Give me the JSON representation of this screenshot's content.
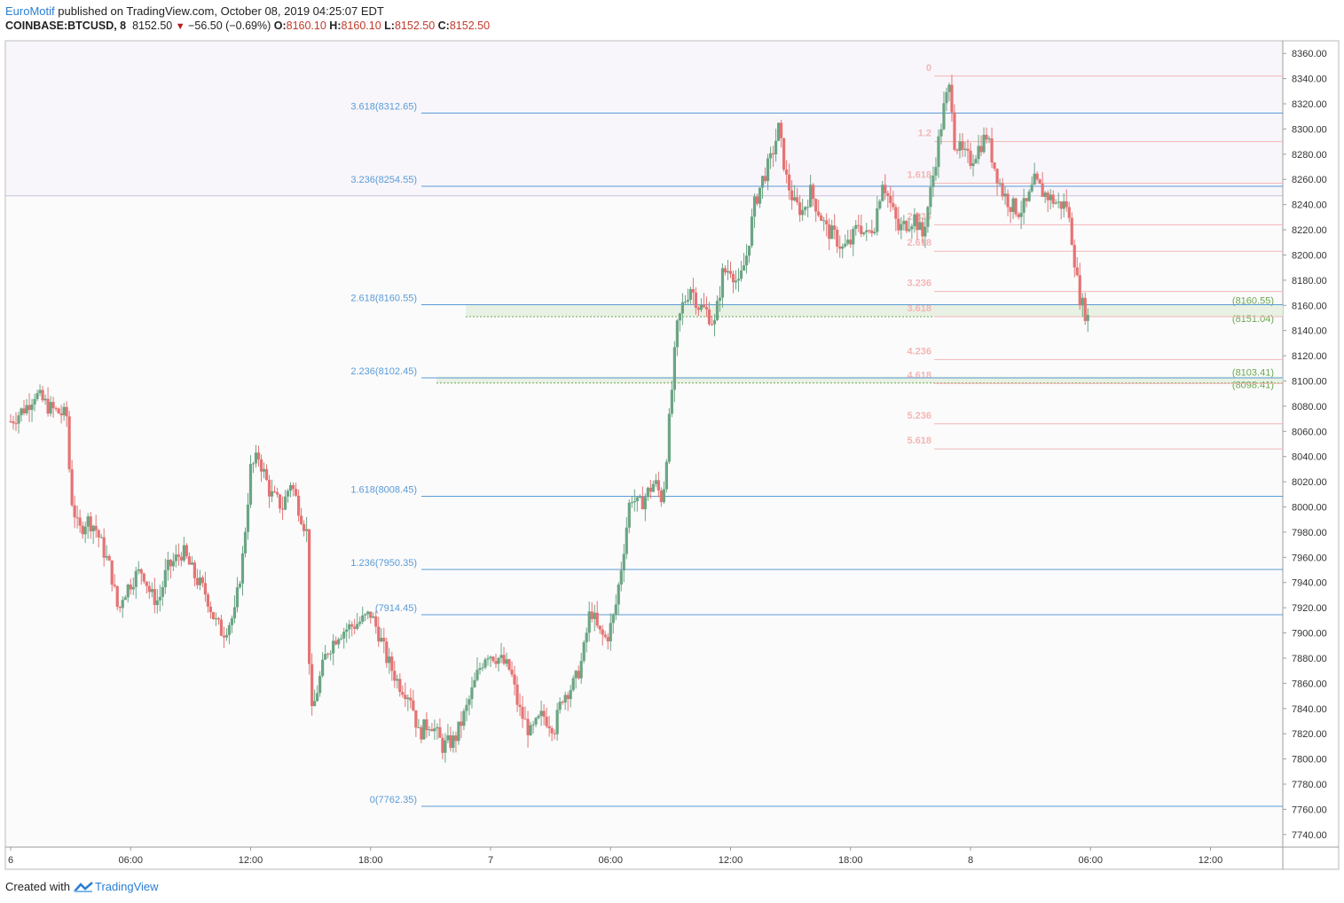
{
  "header": {
    "author": "EuroMotif",
    "published_text": "published on TradingView.com, October 08, 2019 04:25:07 EDT",
    "symbol": "COINBASE:BTCUSD, 8",
    "last_price": "8152.50",
    "change": "−56.50 (−0.69%)",
    "o_label": "O:",
    "o_value": "8160.10",
    "h_label": "H:",
    "h_value": "8160.10",
    "l_label": "L:",
    "l_value": "8152.50",
    "c_label": "C:",
    "c_value": "8152.50"
  },
  "footer": {
    "created_with": "Created with",
    "brand": "TradingView"
  },
  "colors": {
    "up": "#6ba583",
    "down": "#e57373",
    "fib_main": "#5b9bd5",
    "fib_secondary": "#f4b6b6",
    "zone_green": "#6aa84f",
    "axis_text": "#333333"
  },
  "chart_data": {
    "type": "candlestick",
    "symbol": "COINBASE:BTCUSD",
    "timeframe": "8",
    "ylim": [
      7730,
      8370
    ],
    "y_ticks": [
      "7740.00",
      "7760.00",
      "7780.00",
      "7800.00",
      "7820.00",
      "7840.00",
      "7860.00",
      "7880.00",
      "7900.00",
      "7920.00",
      "7940.00",
      "7960.00",
      "7980.00",
      "8000.00",
      "8020.00",
      "8040.00",
      "8060.00",
      "8080.00",
      "8100.00",
      "8120.00",
      "8140.00",
      "8160.00",
      "8180.00",
      "8200.00",
      "8220.00",
      "8240.00",
      "8260.00",
      "8280.00",
      "8300.00",
      "8320.00",
      "8340.00",
      "8360.00"
    ],
    "x_ticks": [
      {
        "t": 0,
        "label": "6"
      },
      {
        "t": 6,
        "label": "06:00"
      },
      {
        "t": 12,
        "label": "12:00"
      },
      {
        "t": 18,
        "label": "18:00"
      },
      {
        "t": 24,
        "label": "7"
      },
      {
        "t": 30,
        "label": "06:00"
      },
      {
        "t": 36,
        "label": "12:00"
      },
      {
        "t": 42,
        "label": "18:00"
      },
      {
        "t": 48,
        "label": "8"
      },
      {
        "t": 54,
        "label": "06:00"
      },
      {
        "t": 60,
        "label": "12:00"
      }
    ],
    "path_keypoints": [
      [
        0.0,
        8068
      ],
      [
        0.8,
        8080
      ],
      [
        1.2,
        8090
      ],
      [
        2.0,
        8078
      ],
      [
        2.8,
        8072
      ],
      [
        3.0,
        8010
      ],
      [
        3.4,
        7980
      ],
      [
        3.8,
        7990
      ],
      [
        4.2,
        7985
      ],
      [
        5.0,
        7950
      ],
      [
        5.4,
        7915
      ],
      [
        5.6,
        7930
      ],
      [
        6.2,
        7945
      ],
      [
        6.6,
        7950
      ],
      [
        7.0,
        7930
      ],
      [
        7.4,
        7925
      ],
      [
        7.8,
        7950
      ],
      [
        8.6,
        7965
      ],
      [
        9.2,
        7945
      ],
      [
        9.8,
        7930
      ],
      [
        10.2,
        7910
      ],
      [
        10.6,
        7900
      ],
      [
        11.2,
        7915
      ],
      [
        11.6,
        7960
      ],
      [
        12.0,
        8030
      ],
      [
        12.4,
        8040
      ],
      [
        13.0,
        8010
      ],
      [
        13.6,
        8000
      ],
      [
        14.0,
        8020
      ],
      [
        14.4,
        8000
      ],
      [
        14.8,
        7980
      ],
      [
        15.0,
        7830
      ],
      [
        15.4,
        7860
      ],
      [
        15.8,
        7885
      ],
      [
        16.4,
        7900
      ],
      [
        17.0,
        7905
      ],
      [
        17.6,
        7910
      ],
      [
        18.0,
        7915
      ],
      [
        18.4,
        7900
      ],
      [
        18.8,
        7880
      ],
      [
        19.4,
        7860
      ],
      [
        20.0,
        7850
      ],
      [
        20.4,
        7820
      ],
      [
        21.0,
        7830
      ],
      [
        21.6,
        7810
      ],
      [
        22.2,
        7815
      ],
      [
        22.8,
        7840
      ],
      [
        23.4,
        7870
      ],
      [
        23.8,
        7885
      ],
      [
        24.4,
        7880
      ],
      [
        25.0,
        7870
      ],
      [
        25.4,
        7840
      ],
      [
        26.0,
        7820
      ],
      [
        26.6,
        7835
      ],
      [
        27.2,
        7825
      ],
      [
        27.6,
        7850
      ],
      [
        28.2,
        7860
      ],
      [
        28.6,
        7880
      ],
      [
        29.0,
        7920
      ],
      [
        29.4,
        7900
      ],
      [
        29.8,
        7895
      ],
      [
        30.2,
        7915
      ],
      [
        30.6,
        7960
      ],
      [
        31.0,
        8010
      ],
      [
        31.4,
        8000
      ],
      [
        31.8,
        8010
      ],
      [
        32.2,
        8020
      ],
      [
        32.6,
        8005
      ],
      [
        33.0,
        8080
      ],
      [
        33.3,
        8140
      ],
      [
        33.6,
        8160
      ],
      [
        34.0,
        8175
      ],
      [
        34.4,
        8160
      ],
      [
        34.8,
        8155
      ],
      [
        35.2,
        8145
      ],
      [
        35.6,
        8185
      ],
      [
        36.0,
        8190
      ],
      [
        36.4,
        8175
      ],
      [
        36.8,
        8200
      ],
      [
        37.2,
        8240
      ],
      [
        37.6,
        8260
      ],
      [
        38.0,
        8275
      ],
      [
        38.4,
        8300
      ],
      [
        38.8,
        8260
      ],
      [
        39.2,
        8240
      ],
      [
        39.6,
        8235
      ],
      [
        40.0,
        8250
      ],
      [
        40.4,
        8235
      ],
      [
        40.8,
        8220
      ],
      [
        41.2,
        8215
      ],
      [
        41.6,
        8205
      ],
      [
        42.0,
        8210
      ],
      [
        42.4,
        8225
      ],
      [
        42.8,
        8215
      ],
      [
        43.2,
        8225
      ],
      [
        43.6,
        8260
      ],
      [
        44.0,
        8240
      ],
      [
        44.4,
        8220
      ],
      [
        44.8,
        8225
      ],
      [
        45.2,
        8230
      ],
      [
        45.6,
        8215
      ],
      [
        46.0,
        8250
      ],
      [
        46.4,
        8290
      ],
      [
        46.7,
        8320
      ],
      [
        47.0,
        8335
      ],
      [
        47.2,
        8290
      ],
      [
        47.6,
        8280
      ],
      [
        48.0,
        8275
      ],
      [
        48.4,
        8285
      ],
      [
        48.8,
        8295
      ],
      [
        49.2,
        8270
      ],
      [
        49.6,
        8250
      ],
      [
        50.0,
        8240
      ],
      [
        50.4,
        8235
      ],
      [
        50.8,
        8240
      ],
      [
        51.2,
        8258
      ],
      [
        51.6,
        8250
      ],
      [
        52.0,
        8245
      ],
      [
        52.4,
        8240
      ],
      [
        52.8,
        8240
      ],
      [
        53.1,
        8210
      ],
      [
        53.4,
        8170
      ],
      [
        53.7,
        8155
      ],
      [
        53.9,
        8152.5
      ]
    ],
    "fib_extension_main": {
      "anchor_low": 7762.35,
      "levels": [
        {
          "ratio": "0",
          "price": 7762.35,
          "label": "0(7762.35)"
        },
        {
          "ratio": "1",
          "price": 7914.45,
          "label": "(7914.45)"
        },
        {
          "ratio": "1.236",
          "price": 7950.35,
          "label": "1.236(7950.35)"
        },
        {
          "ratio": "1.618",
          "price": 8008.45,
          "label": "1.618(8008.45)"
        },
        {
          "ratio": "2.236",
          "price": 8102.45,
          "label": "2.236(8102.45)"
        },
        {
          "ratio": "2.618",
          "price": 8160.55,
          "label": "2.618(8160.55)"
        },
        {
          "ratio": "3.236",
          "price": 8254.55,
          "label": "3.236(8254.55)"
        },
        {
          "ratio": "3.618",
          "price": 8312.65,
          "label": "3.618(8312.65)"
        }
      ]
    },
    "fib_extension_secondary": {
      "levels": [
        {
          "label": "0",
          "price": 8342
        },
        {
          "label": "1.2",
          "price": 8290
        },
        {
          "label": "1.618",
          "price": 8257
        },
        {
          "label": "2.236",
          "price": 8224
        },
        {
          "label": "2.618",
          "price": 8203
        },
        {
          "label": "3.236",
          "price": 8171
        },
        {
          "label": "3.618",
          "price": 8151
        },
        {
          "label": "4.236",
          "price": 8117
        },
        {
          "label": "4.618",
          "price": 8098
        },
        {
          "label": "5.236",
          "price": 8066
        },
        {
          "label": "5.618",
          "price": 8046
        }
      ]
    },
    "confluence_zones": [
      {
        "top_label": "(8160.55)",
        "top": 8160.55,
        "bottom_label": "(8151.04)",
        "bottom": 8151.04
      },
      {
        "top_label": "(8103.41)",
        "top": 8103.41,
        "bottom_label": "(8098.41)",
        "bottom": 8098.41
      }
    ],
    "horizontal_line": 8247
  }
}
